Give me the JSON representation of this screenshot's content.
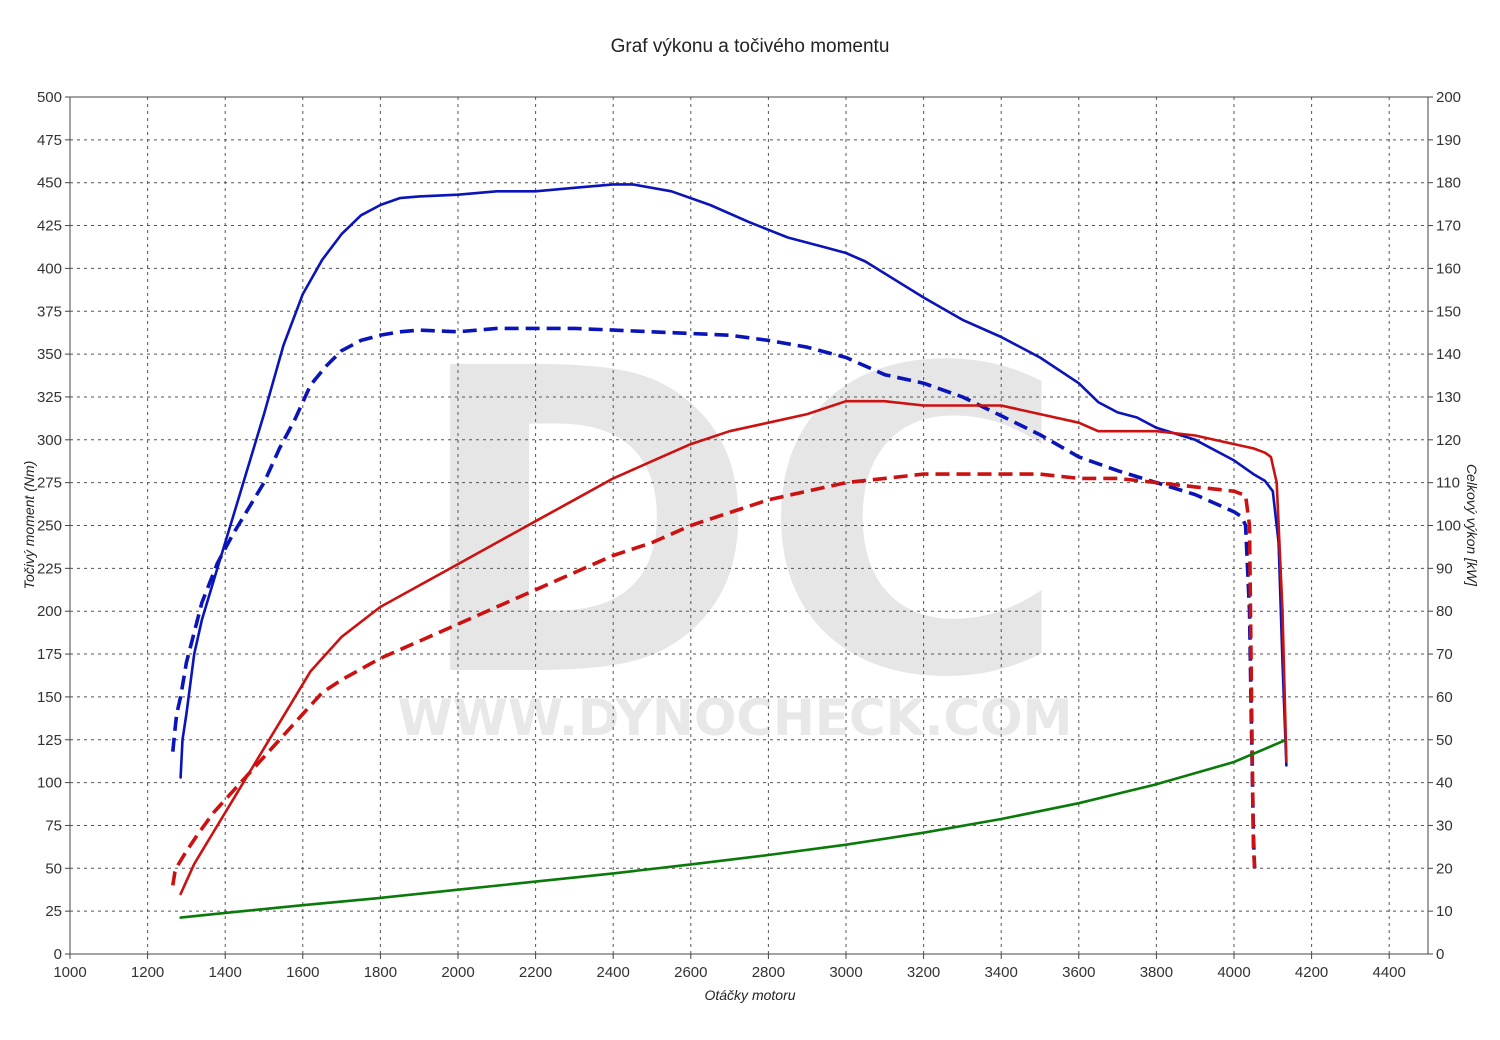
{
  "watermark": {
    "letters": "DC",
    "url": "WWW.DYNOCHECK.COM"
  },
  "chart_data": {
    "type": "line",
    "title": "Graf výkonu a točivého momentu",
    "xlabel": "Otáčky motoru",
    "ylabel_left": "Točivý moment (Nm)",
    "ylabel_right": "Celkový výkon [kW]",
    "xlim": [
      1000,
      4500
    ],
    "ylim_left": [
      0,
      500
    ],
    "ylim_right": [
      0,
      200
    ],
    "x_ticks": [
      1000,
      1200,
      1400,
      1600,
      1800,
      2000,
      2200,
      2400,
      2600,
      2800,
      3000,
      3200,
      3400,
      3600,
      3800,
      4000,
      4200,
      4400
    ],
    "y_ticks_left": [
      0,
      25,
      50,
      75,
      100,
      125,
      150,
      175,
      200,
      225,
      250,
      275,
      300,
      325,
      350,
      375,
      400,
      425,
      450,
      475,
      500
    ],
    "y_ticks_right": [
      0,
      10,
      20,
      30,
      40,
      50,
      60,
      70,
      80,
      90,
      100,
      110,
      120,
      130,
      140,
      150,
      160,
      170,
      180,
      190,
      200
    ],
    "grid": true,
    "legend": "none",
    "series": [
      {
        "axis": "left",
        "style": "solid",
        "color": "#0a14b8",
        "x": [
          1285,
          1290,
          1300,
          1320,
          1340,
          1380,
          1420,
          1460,
          1500,
          1550,
          1600,
          1650,
          1700,
          1750,
          1800,
          1850,
          1900,
          2000,
          2100,
          2200,
          2300,
          2400,
          2450,
          2550,
          2650,
          2750,
          2850,
          2950,
          3000,
          3050,
          3100,
          3200,
          3300,
          3400,
          3500,
          3600,
          3650,
          3700,
          3750,
          3800,
          3900,
          4000,
          4050,
          4080,
          4100,
          4115,
          4125,
          4135
        ],
        "y": [
          103,
          125,
          140,
          175,
          195,
          225,
          255,
          285,
          315,
          355,
          385,
          405,
          420,
          431,
          437,
          441,
          442,
          443,
          445,
          445,
          447,
          449,
          449,
          445,
          437,
          427,
          418,
          412,
          409,
          404,
          397,
          383,
          370,
          360,
          348,
          333,
          322,
          316,
          313,
          307,
          300,
          288,
          280,
          276,
          270,
          240,
          170,
          110
        ]
      },
      {
        "axis": "left",
        "style": "dashed",
        "color": "#0a14b8",
        "x": [
          1265,
          1270,
          1275,
          1285,
          1300,
          1340,
          1380,
          1420,
          1460,
          1500,
          1540,
          1580,
          1620,
          1660,
          1700,
          1750,
          1800,
          1850,
          1900,
          2000,
          2100,
          2200,
          2300,
          2400,
          2500,
          2600,
          2700,
          2800,
          2900,
          3000,
          3100,
          3200,
          3300,
          3400,
          3500,
          3600,
          3700,
          3800,
          3900,
          4000,
          4020,
          4030,
          4040,
          4045,
          4050,
          4053
        ],
        "y": [
          118,
          130,
          140,
          150,
          170,
          205,
          228,
          245,
          260,
          275,
          295,
          312,
          332,
          343,
          352,
          358,
          361,
          363,
          364,
          363,
          365,
          365,
          365,
          364,
          363,
          362,
          361,
          358,
          354,
          348,
          338,
          333,
          325,
          314,
          303,
          290,
          282,
          275,
          268,
          258,
          255,
          250,
          200,
          130,
          70,
          50
        ]
      },
      {
        "axis": "right",
        "style": "solid",
        "color": "#cc1111",
        "x": [
          1285,
          1300,
          1320,
          1340,
          1380,
          1420,
          1460,
          1500,
          1560,
          1620,
          1700,
          1800,
          1900,
          2000,
          2100,
          2200,
          2300,
          2400,
          2500,
          2600,
          2700,
          2800,
          2900,
          3000,
          3050,
          3100,
          3200,
          3300,
          3400,
          3500,
          3600,
          3650,
          3700,
          3800,
          3900,
          4000,
          4050,
          4080,
          4095,
          4110,
          4125,
          4135
        ],
        "y": [
          14,
          17,
          21,
          24,
          30,
          36,
          42,
          48,
          57,
          66,
          74,
          81,
          86,
          91,
          96,
          101,
          106,
          111,
          115,
          119,
          122,
          124,
          126,
          129,
          129,
          129,
          128,
          128,
          128,
          126,
          124,
          122,
          122,
          122,
          121,
          119,
          118,
          117,
          116,
          110,
          80,
          45
        ]
      },
      {
        "axis": "right",
        "style": "dashed",
        "color": "#cc1111",
        "x": [
          1265,
          1270,
          1280,
          1300,
          1330,
          1370,
          1400,
          1450,
          1500,
          1550,
          1600,
          1650,
          1700,
          1800,
          1900,
          2000,
          2100,
          2200,
          2300,
          2400,
          2500,
          2600,
          2700,
          2800,
          2900,
          3000,
          3100,
          3200,
          3300,
          3400,
          3500,
          3600,
          3700,
          3800,
          3900,
          4000,
          4030,
          4040,
          4045,
          4050,
          4053
        ],
        "y": [
          16,
          19,
          21,
          24,
          28,
          33,
          36,
          41,
          46,
          51,
          56,
          61,
          64,
          69,
          73,
          77,
          81,
          85,
          89,
          93,
          96,
          100,
          103,
          106,
          108,
          110,
          111,
          112,
          112,
          112,
          112,
          111,
          111,
          110,
          109,
          108,
          107,
          100,
          60,
          25,
          20
        ]
      },
      {
        "axis": "right",
        "style": "solid",
        "color": "#0a7a0a",
        "x": [
          1285,
          1400,
          1600,
          1800,
          2000,
          2200,
          2400,
          2600,
          2800,
          3000,
          3200,
          3400,
          3600,
          3800,
          4000,
          4130
        ],
        "y": [
          8.5,
          9.6,
          11.4,
          13.1,
          15.0,
          16.9,
          18.8,
          20.9,
          23.1,
          25.5,
          28.3,
          31.5,
          35.2,
          39.6,
          44.8,
          49.8
        ]
      }
    ]
  }
}
